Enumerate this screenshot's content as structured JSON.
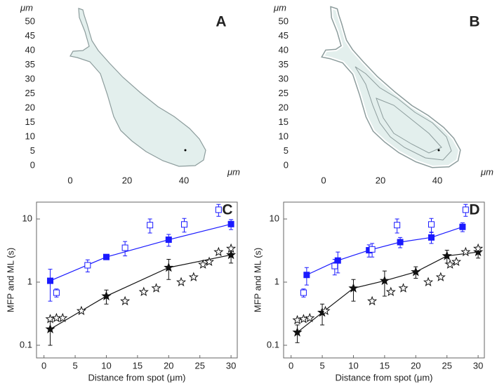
{
  "chart_data": [
    {
      "type": "outline",
      "panel_label": "A",
      "x_unit": "μm",
      "y_unit": "μm",
      "xlim": [
        -24.7,
        60.5
      ],
      "ylim": [
        -3.4,
        55.1
      ],
      "xticks": [
        0,
        20,
        40
      ],
      "yticks": [
        0,
        5,
        10,
        15,
        20,
        25,
        30,
        35,
        40,
        45,
        50
      ]
    },
    {
      "type": "outline",
      "panel_label": "B",
      "x_unit": "μm",
      "y_unit": "μm",
      "xlim": [
        -24.7,
        60.5
      ],
      "ylim": [
        -3.4,
        55.1
      ],
      "xticks": [
        0,
        20,
        40
      ],
      "yticks": [
        0,
        5,
        10,
        15,
        20,
        25,
        30,
        35,
        40,
        45,
        50
      ]
    },
    {
      "type": "line",
      "panel_label": "C",
      "x_label": "Distance from spot (μm)",
      "y_label": "MFP and ML (s)",
      "log_y": true,
      "xlim": [
        -1.2,
        31
      ],
      "ylim": [
        0.063,
        18.5
      ],
      "xticks": [
        0,
        5,
        10,
        15,
        20,
        25,
        30
      ],
      "yticks": [
        0.1,
        1,
        10
      ],
      "series": [
        {
          "marker": "square",
          "filled": true,
          "line": true,
          "color": "#1a1aff",
          "x": [
            1,
            10,
            20,
            30
          ],
          "values": [
            1.05,
            2.5,
            4.7,
            8.3
          ],
          "errors": [
            0.55,
            0.15,
            1.0,
            1.5
          ]
        },
        {
          "marker": "square",
          "filled": false,
          "line": false,
          "color": "#1a1aff",
          "x": [
            2,
            7,
            13,
            17,
            22.5,
            28
          ],
          "values": [
            0.68,
            1.85,
            3.5,
            8,
            8.2,
            14
          ],
          "errors": [
            0.1,
            0.4,
            0.9,
            2,
            2,
            3
          ]
        },
        {
          "marker": "star",
          "filled": true,
          "line": true,
          "color": "#111111",
          "x": [
            1,
            10,
            20,
            30
          ],
          "values": [
            0.18,
            0.6,
            1.7,
            2.7
          ],
          "errors": [
            0.08,
            0.15,
            0.6,
            0.7
          ]
        },
        {
          "marker": "star",
          "filled": false,
          "line": false,
          "color": "#111111",
          "x": [
            1,
            2,
            3,
            6,
            13,
            16,
            18,
            22,
            24,
            25.5,
            26.5,
            28,
            30
          ],
          "values": [
            0.26,
            0.27,
            0.27,
            0.35,
            0.5,
            0.7,
            0.8,
            1.0,
            1.2,
            1.9,
            2.1,
            3.0,
            3.4
          ]
        }
      ]
    },
    {
      "type": "line",
      "panel_label": "D",
      "x_label": "Distance from spot (μm)",
      "y_label": "MFP and ML (s)",
      "log_y": true,
      "xlim": [
        -1.2,
        31
      ],
      "ylim": [
        0.063,
        18.5
      ],
      "xticks": [
        0,
        5,
        10,
        15,
        20,
        25,
        30
      ],
      "yticks": [
        0.1,
        1,
        10
      ],
      "series": [
        {
          "marker": "square",
          "filled": true,
          "line": true,
          "color": "#1a1aff",
          "x": [
            2.5,
            7.5,
            12.5,
            17.5,
            22.5,
            27.5
          ],
          "values": [
            1.3,
            2.2,
            3.2,
            4.3,
            5.1,
            7.5
          ],
          "errors": [
            0.4,
            0.8,
            0.7,
            0.8,
            1.0,
            1.2
          ]
        },
        {
          "marker": "square",
          "filled": false,
          "line": false,
          "color": "#1a1aff",
          "x": [
            2,
            7,
            13,
            17,
            22.5,
            28
          ],
          "values": [
            0.68,
            1.8,
            3.3,
            8,
            8.2,
            14
          ],
          "errors": [
            0.1,
            0.5,
            0.8,
            2,
            2,
            3
          ]
        },
        {
          "marker": "star",
          "filled": true,
          "line": true,
          "color": "#111111",
          "x": [
            1,
            5,
            10,
            15,
            20,
            25,
            30
          ],
          "values": [
            0.16,
            0.33,
            0.8,
            1.05,
            1.45,
            2.6,
            3.0
          ],
          "errors": [
            0.05,
            0.12,
            0.3,
            0.45,
            0.3,
            0.6,
            0.6
          ]
        },
        {
          "marker": "star",
          "filled": false,
          "line": false,
          "color": "#111111",
          "x": [
            1,
            2,
            3,
            5.5,
            13,
            16,
            18,
            22,
            24,
            25.5,
            26.5,
            28,
            30
          ],
          "values": [
            0.25,
            0.26,
            0.27,
            0.35,
            0.5,
            0.7,
            0.8,
            1.0,
            1.2,
            1.9,
            2.1,
            3.0,
            3.4
          ]
        }
      ]
    }
  ]
}
